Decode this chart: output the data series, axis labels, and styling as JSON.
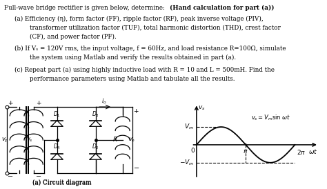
{
  "bg_color": "#ffffff",
  "title_normal": "Full-wave bridge rectifier is given below, determine: ",
  "title_bold": "(Hand calculation for part (a))",
  "part_a_line1": "(a) Efficiency (η), form factor (FF), ripple factor (RF), peak inverse voltage (PIV),",
  "part_a_line2": "transformer utilization factor (TUF), total harmonic distortion (THD), crest factor",
  "part_a_line3": "(CF), and power factor (PF).",
  "part_b_line1": "(b) If Vₛ = 120V rms, the input voltage, f = 60Hz, and load resistance R=100Ω, simulate",
  "part_b_line2": "the system using Matlab and verify the results obtained in part (a).",
  "part_c_line1": "(c) Repeat part (a) using highly inductive load with R = 10 and L = 500mH. Find the",
  "part_c_line2": "performance parameters using Matlab and tabulate all the results.",
  "caption": "(a) Circuit diagram",
  "fs": 6.3,
  "fs_bold": 6.3
}
